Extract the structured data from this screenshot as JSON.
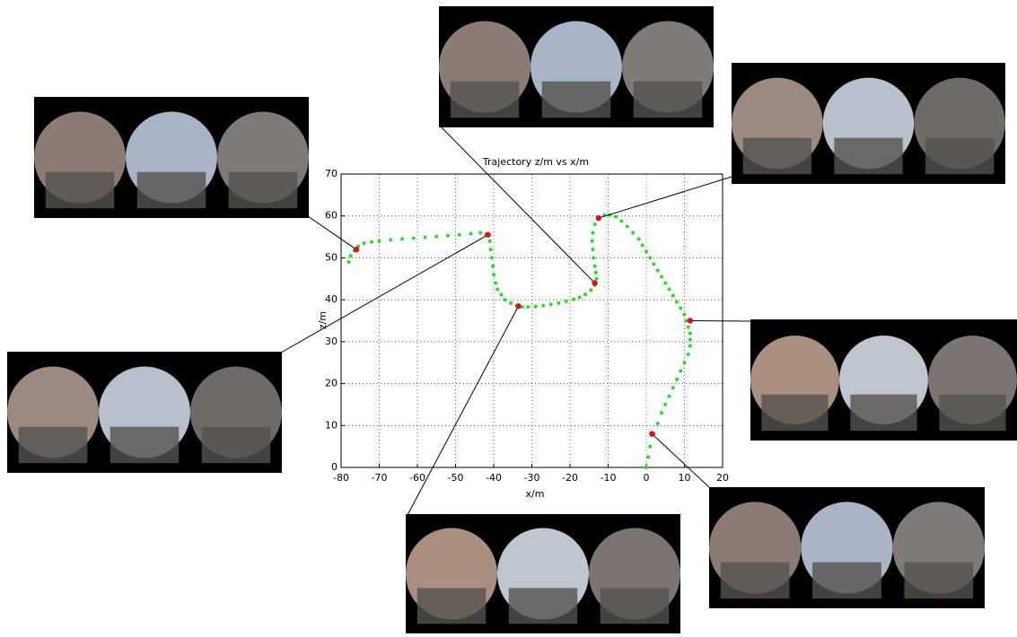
{
  "chart_data": {
    "type": "scatter",
    "title": "Trajectory z/m vs x/m",
    "x_label": "x/m",
    "y_label": "z/m",
    "xlim": [
      -80,
      20
    ],
    "ylim": [
      0,
      70
    ],
    "xticks": [
      -80,
      -70,
      -60,
      -50,
      -40,
      -30,
      -20,
      -10,
      0,
      10,
      20
    ],
    "yticks": [
      0,
      10,
      20,
      30,
      40,
      50,
      60,
      70
    ],
    "grid": true,
    "series": [
      {
        "color": "#22e022",
        "x": [
          0,
          0.5,
          1,
          2,
          3,
          4,
          5,
          6,
          7,
          8,
          9,
          10,
          11,
          11.5,
          11.5,
          11.5,
          11,
          10.5,
          10,
          9,
          8,
          7,
          6,
          5,
          4,
          3,
          2,
          1,
          0,
          -1,
          -2,
          -3.5,
          -5,
          -6.5,
          -8,
          -9.5,
          -11,
          -12.5,
          -13.5,
          -14,
          -14.2,
          -14,
          -13.8,
          -13.5,
          -13.2,
          -13,
          -13.5,
          -14.5,
          -16,
          -17.5,
          -19,
          -21,
          -23,
          -25,
          -27,
          -29,
          -31,
          -32.5,
          -34,
          -35.5,
          -37,
          -38,
          -39,
          -39.5,
          -40,
          -40.2,
          -40.5,
          -40.8,
          -41,
          -42,
          -43.5,
          -46,
          -49,
          -52,
          -55,
          -58,
          -61,
          -64,
          -67,
          -70,
          -72,
          -74,
          -75.5,
          -76.5,
          -77.5,
          -78
        ],
        "values": [
          0,
          2.5,
          5,
          8,
          10.5,
          13,
          15,
          17,
          19,
          21,
          23,
          25,
          27,
          29,
          30.5,
          32,
          33.5,
          35,
          36.5,
          38,
          39.5,
          41,
          42.5,
          44,
          45.5,
          47,
          48.5,
          50,
          51.5,
          53,
          54.5,
          56,
          57.5,
          58.8,
          59.8,
          60.2,
          60.2,
          59.5,
          58,
          56,
          54,
          52,
          50,
          48,
          46.5,
          45,
          43.5,
          42.3,
          41.3,
          40.6,
          40.1,
          39.6,
          39.2,
          38.9,
          38.6,
          38.4,
          38.3,
          38.3,
          38.6,
          39.2,
          40,
          41.2,
          42.5,
          44,
          46,
          48,
          50,
          52,
          54,
          55.6,
          56,
          55.8,
          55.5,
          55.3,
          55.1,
          54.9,
          54.7,
          54.5,
          54.3,
          54,
          53.8,
          53.5,
          52.8,
          51.7,
          50.5,
          49
        ]
      },
      {
        "color": "#e01010",
        "x": [
          -76,
          -41.5,
          -33.5,
          -13.5,
          -12.5,
          11.5,
          1.5
        ],
        "values": [
          52,
          55.5,
          38.5,
          44,
          59.5,
          35,
          8
        ]
      }
    ]
  }
}
